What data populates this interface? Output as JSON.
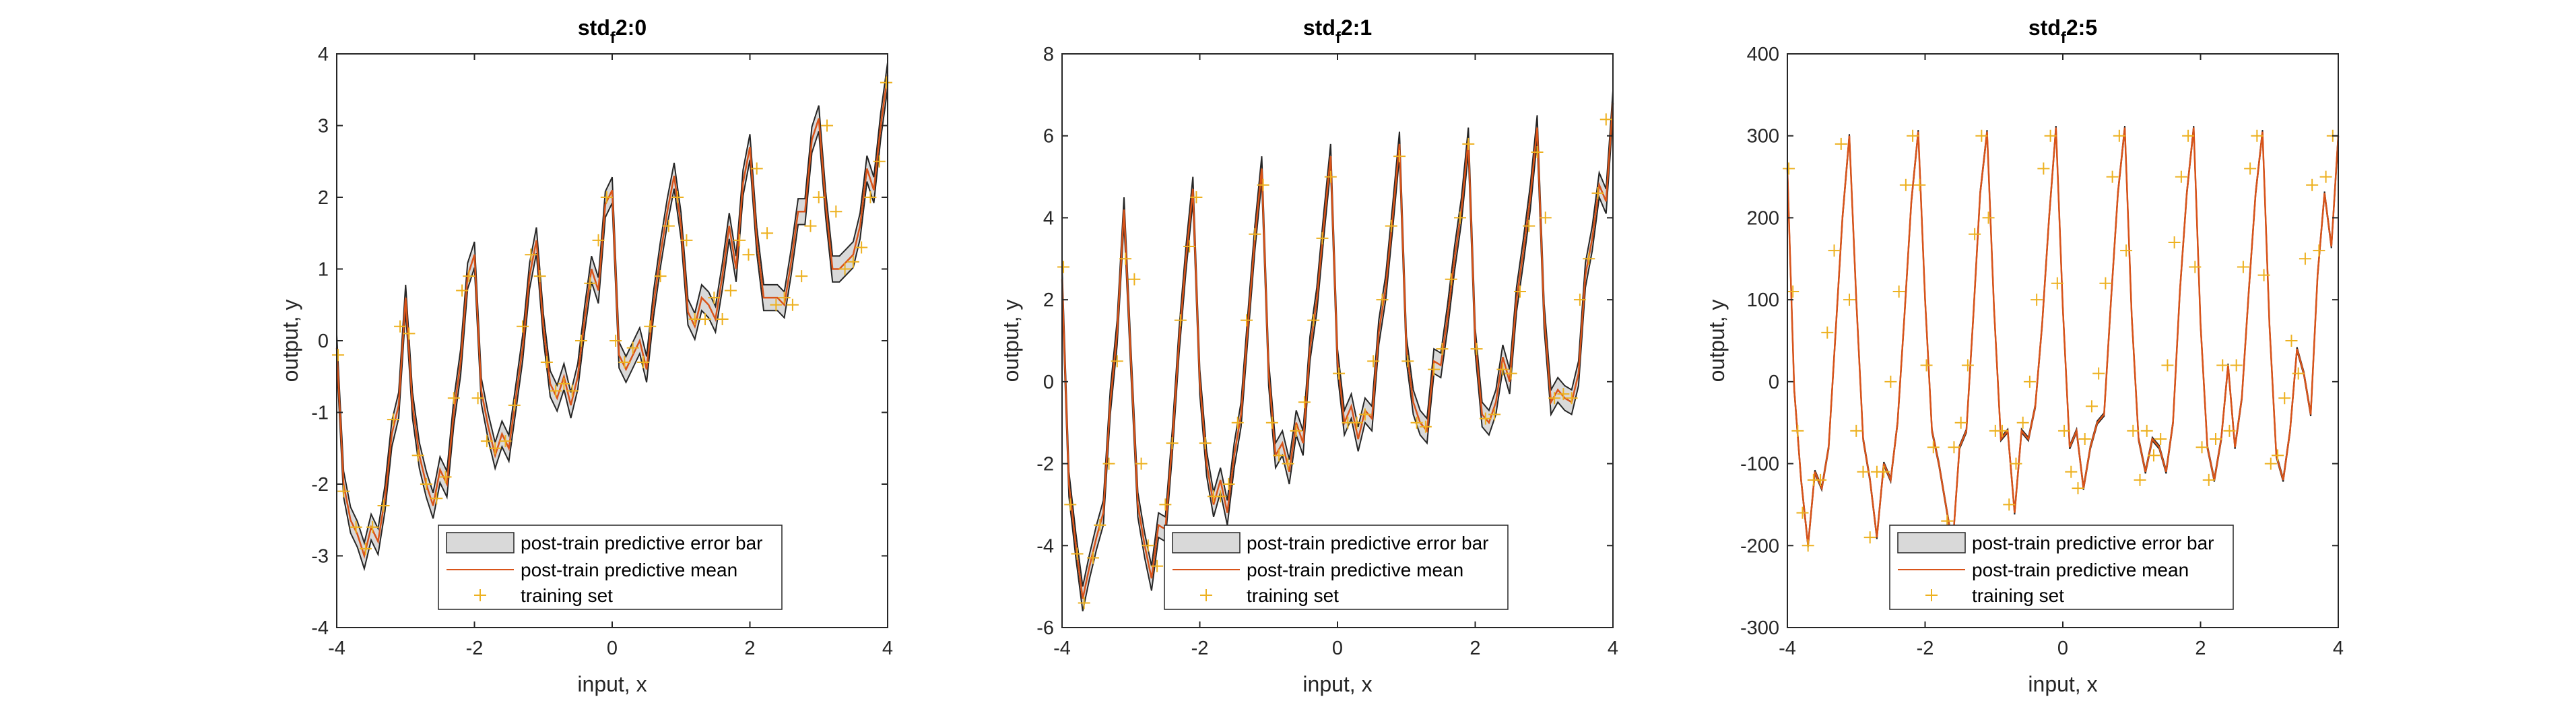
{
  "chart_data": [
    {
      "type": "line",
      "title": "std_f2:0",
      "title_main": "std",
      "title_sub": "f",
      "title_rest": "2:0",
      "xlabel": "input, x",
      "ylabel": "output, y",
      "xlim": [
        -4,
        4
      ],
      "ylim": [
        -4,
        4
      ],
      "xticks": [
        -4,
        -2,
        0,
        2,
        4
      ],
      "yticks": [
        -4,
        -3,
        -2,
        -1,
        0,
        1,
        2,
        3,
        4
      ],
      "xtick_labels": [
        "-4",
        "-2",
        "0",
        "2",
        "4"
      ],
      "ytick_labels": [
        "-4",
        "-3",
        "-2",
        "-1",
        "0",
        "1",
        "2",
        "3",
        "4"
      ],
      "mean_curve": {
        "x": [
          -4.0,
          -3.9,
          -3.8,
          -3.7,
          -3.6,
          -3.5,
          -3.4,
          -3.3,
          -3.2,
          -3.1,
          -3.0,
          -2.9,
          -2.8,
          -2.7,
          -2.6,
          -2.5,
          -2.4,
          -2.3,
          -2.2,
          -2.1,
          -2.0,
          -1.9,
          -1.8,
          -1.7,
          -1.6,
          -1.5,
          -1.4,
          -1.3,
          -1.2,
          -1.1,
          -1.0,
          -0.9,
          -0.8,
          -0.7,
          -0.6,
          -0.5,
          -0.4,
          -0.3,
          -0.2,
          -0.1,
          0.0,
          0.1,
          0.2,
          0.3,
          0.4,
          0.5,
          0.6,
          0.7,
          0.8,
          0.9,
          1.0,
          1.1,
          1.2,
          1.3,
          1.4,
          1.5,
          1.6,
          1.7,
          1.8,
          1.9,
          2.0,
          2.1,
          2.2,
          2.3,
          2.4,
          2.5,
          2.6,
          2.7,
          2.8,
          2.9,
          3.0,
          3.1,
          3.2,
          3.3,
          3.4,
          3.5,
          3.6,
          3.7,
          3.8,
          3.9,
          4.0
        ],
        "y": [
          -0.1,
          -2.0,
          -2.5,
          -2.7,
          -3.0,
          -2.6,
          -2.8,
          -2.2,
          -1.3,
          -0.9,
          0.6,
          -0.9,
          -1.6,
          -2.0,
          -2.3,
          -1.8,
          -2.0,
          -1.0,
          -0.3,
          0.9,
          1.2,
          -0.7,
          -1.2,
          -1.6,
          -1.3,
          -1.5,
          -0.8,
          -0.1,
          0.9,
          1.4,
          0.2,
          -0.6,
          -0.8,
          -0.5,
          -0.9,
          -0.5,
          0.3,
          1.0,
          0.7,
          1.9,
          2.1,
          -0.2,
          -0.4,
          -0.2,
          0.0,
          -0.4,
          0.5,
          1.2,
          1.8,
          2.3,
          1.6,
          0.4,
          0.2,
          0.6,
          0.5,
          0.3,
          0.9,
          1.6,
          1.0,
          2.2,
          2.7,
          1.4,
          0.6,
          0.6,
          0.6,
          0.5,
          1.1,
          1.8,
          1.8,
          2.8,
          3.1,
          1.9,
          1.0,
          1.0,
          1.1,
          1.2,
          1.6,
          2.4,
          2.1,
          3.0,
          3.7
        ]
      },
      "error_band_halfwidth": 0.18,
      "training_set": {
        "x": [
          -3.98,
          -3.9,
          -3.72,
          -3.58,
          -3.48,
          -3.32,
          -3.18,
          -3.08,
          -2.95,
          -2.82,
          -2.7,
          -2.55,
          -2.42,
          -2.3,
          -2.18,
          -2.08,
          -1.95,
          -1.82,
          -1.7,
          -1.55,
          -1.42,
          -1.3,
          -1.18,
          -1.05,
          -0.95,
          -0.82,
          -0.7,
          -0.58,
          -0.45,
          -0.32,
          -0.2,
          -0.08,
          0.05,
          0.18,
          0.3,
          0.45,
          0.55,
          0.7,
          0.82,
          0.95,
          1.08,
          1.2,
          1.35,
          1.48,
          1.6,
          1.72,
          1.85,
          1.98,
          2.1,
          2.25,
          2.38,
          2.5,
          2.62,
          2.75,
          2.88,
          3.0,
          3.12,
          3.25,
          3.38,
          3.5,
          3.62,
          3.75,
          3.88,
          3.98
        ],
        "y": [
          -0.2,
          -2.1,
          -2.6,
          -2.9,
          -2.6,
          -2.3,
          -1.1,
          0.2,
          0.1,
          -1.6,
          -2.0,
          -2.2,
          -1.9,
          -0.8,
          0.7,
          0.9,
          -0.8,
          -1.4,
          -1.5,
          -1.4,
          -0.9,
          0.2,
          1.2,
          0.9,
          -0.3,
          -0.7,
          -0.6,
          -0.7,
          0.0,
          0.8,
          1.4,
          2.0,
          0.0,
          -0.3,
          -0.1,
          -0.3,
          0.2,
          0.9,
          1.6,
          2.0,
          1.4,
          0.3,
          0.3,
          0.6,
          0.3,
          0.7,
          1.4,
          1.2,
          2.4,
          1.5,
          0.5,
          0.6,
          0.5,
          0.9,
          1.6,
          2.0,
          3.0,
          1.8,
          1.0,
          1.1,
          1.3,
          2.0,
          2.5,
          3.6
        ]
      },
      "legend": {
        "position": "bottom-center",
        "entries": [
          "post-train predictive error bar",
          "post-train predictive mean",
          "training set"
        ]
      },
      "grid": false
    },
    {
      "type": "line",
      "title": "std_f2:1",
      "title_main": "std",
      "title_sub": "f",
      "title_rest": "2:1",
      "xlabel": "input, x",
      "ylabel": "output, y",
      "xlim": [
        -4,
        4
      ],
      "ylim": [
        -6,
        8
      ],
      "xticks": [
        -4,
        -2,
        0,
        2,
        4
      ],
      "yticks": [
        -6,
        -4,
        -2,
        0,
        2,
        4,
        6,
        8
      ],
      "xtick_labels": [
        "-4",
        "-2",
        "0",
        "2",
        "4"
      ],
      "ytick_labels": [
        "-6",
        "-4",
        "-2",
        "0",
        "2",
        "4",
        "6",
        "8"
      ],
      "mean_curve": {
        "x": [
          -4.0,
          -3.9,
          -3.8,
          -3.7,
          -3.6,
          -3.5,
          -3.4,
          -3.3,
          -3.2,
          -3.1,
          -3.0,
          -2.9,
          -2.8,
          -2.7,
          -2.6,
          -2.5,
          -2.4,
          -2.3,
          -2.2,
          -2.1,
          -2.0,
          -1.9,
          -1.8,
          -1.7,
          -1.6,
          -1.5,
          -1.4,
          -1.3,
          -1.2,
          -1.1,
          -1.0,
          -0.9,
          -0.8,
          -0.7,
          -0.6,
          -0.5,
          -0.4,
          -0.3,
          -0.2,
          -0.1,
          0.0,
          0.1,
          0.2,
          0.3,
          0.4,
          0.5,
          0.6,
          0.7,
          0.8,
          0.9,
          1.0,
          1.1,
          1.2,
          1.3,
          1.4,
          1.5,
          1.6,
          1.7,
          1.8,
          1.9,
          2.0,
          2.1,
          2.2,
          2.3,
          2.4,
          2.5,
          2.6,
          2.7,
          2.8,
          2.9,
          3.0,
          3.1,
          3.2,
          3.3,
          3.4,
          3.5,
          3.6,
          3.7,
          3.8,
          3.9,
          4.0
        ],
        "y": [
          2.5,
          -2.5,
          -4.0,
          -5.3,
          -4.5,
          -3.8,
          -3.2,
          -0.5,
          1.2,
          4.2,
          0.5,
          -3.0,
          -4.0,
          -4.8,
          -3.5,
          -3.6,
          -1.5,
          1.0,
          3.0,
          4.7,
          0.0,
          -2.0,
          -3.0,
          -2.4,
          -3.2,
          -1.8,
          -0.8,
          1.4,
          3.5,
          5.2,
          0.2,
          -1.8,
          -1.5,
          -2.2,
          -1.0,
          -1.5,
          0.8,
          2.0,
          3.8,
          5.5,
          0.5,
          -1.0,
          -0.6,
          -1.4,
          -0.7,
          -0.9,
          1.2,
          2.3,
          4.0,
          5.8,
          0.8,
          -0.5,
          -1.0,
          -1.2,
          0.5,
          0.4,
          1.6,
          3.0,
          4.2,
          5.9,
          1.0,
          -0.8,
          -1.0,
          -0.5,
          0.6,
          0.0,
          2.0,
          3.2,
          4.5,
          6.2,
          1.6,
          -0.5,
          -0.2,
          -0.4,
          -0.5,
          0.2,
          2.6,
          3.5,
          4.8,
          4.4,
          6.8
        ]
      },
      "error_band_halfwidth": 0.3,
      "training_set": {
        "x": [
          -3.98,
          -3.88,
          -3.78,
          -3.68,
          -3.55,
          -3.45,
          -3.32,
          -3.2,
          -3.08,
          -2.95,
          -2.85,
          -2.75,
          -2.62,
          -2.5,
          -2.4,
          -2.28,
          -2.15,
          -2.05,
          -1.92,
          -1.8,
          -1.7,
          -1.58,
          -1.45,
          -1.32,
          -1.2,
          -1.08,
          -0.95,
          -0.85,
          -0.72,
          -0.6,
          -0.48,
          -0.35,
          -0.22,
          -0.1,
          0.02,
          0.15,
          0.28,
          0.4,
          0.52,
          0.65,
          0.78,
          0.9,
          1.02,
          1.15,
          1.28,
          1.4,
          1.52,
          1.65,
          1.78,
          1.9,
          2.02,
          2.15,
          2.28,
          2.4,
          2.52,
          2.65,
          2.78,
          2.9,
          3.02,
          3.15,
          3.28,
          3.4,
          3.52,
          3.65,
          3.78,
          3.9
        ],
        "y": [
          2.8,
          -3.0,
          -4.2,
          -5.4,
          -4.3,
          -3.5,
          -2.0,
          0.5,
          3.0,
          2.5,
          -2.0,
          -4.0,
          -4.5,
          -3.0,
          -1.5,
          1.5,
          3.3,
          4.5,
          -1.5,
          -2.8,
          -2.8,
          -2.5,
          -1.0,
          1.5,
          3.6,
          4.8,
          -1.0,
          -1.8,
          -2.0,
          -1.2,
          -0.5,
          1.5,
          3.5,
          5.0,
          0.2,
          -1.0,
          -1.0,
          -0.8,
          0.5,
          2.0,
          3.8,
          5.5,
          0.5,
          -1.0,
          -1.1,
          0.3,
          0.8,
          2.5,
          4.0,
          5.8,
          0.8,
          -0.9,
          -0.8,
          0.3,
          0.2,
          2.2,
          3.8,
          5.6,
          4.0,
          -0.4,
          -0.3,
          -0.4,
          2.0,
          3.0,
          4.6,
          6.4
        ]
      },
      "legend": {
        "position": "bottom-center",
        "entries": [
          "post-train predictive error bar",
          "post-train predictive mean",
          "training set"
        ]
      },
      "grid": false
    },
    {
      "type": "line",
      "title": "std_f2:5",
      "title_main": "std",
      "title_sub": "f",
      "title_rest": "2:5",
      "xlabel": "input, x",
      "ylabel": "output, y",
      "xlim": [
        -4,
        4
      ],
      "ylim": [
        -300,
        400
      ],
      "xticks": [
        -4,
        -2,
        0,
        2,
        4
      ],
      "yticks": [
        -300,
        -200,
        -100,
        0,
        100,
        200,
        300,
        400
      ],
      "xtick_labels": [
        "-4",
        "-2",
        "0",
        "2",
        "4"
      ],
      "ytick_labels": [
        "-300",
        "-200",
        "-100",
        "0",
        "100",
        "200",
        "300",
        "400"
      ],
      "mean_curve": {
        "x": [
          -4.0,
          -3.9,
          -3.8,
          -3.7,
          -3.6,
          -3.5,
          -3.4,
          -3.3,
          -3.2,
          -3.1,
          -3.0,
          -2.9,
          -2.8,
          -2.7,
          -2.6,
          -2.5,
          -2.4,
          -2.3,
          -2.2,
          -2.1,
          -2.0,
          -1.9,
          -1.8,
          -1.7,
          -1.6,
          -1.5,
          -1.4,
          -1.3,
          -1.2,
          -1.1,
          -1.0,
          -0.9,
          -0.8,
          -0.7,
          -0.6,
          -0.5,
          -0.4,
          -0.3,
          -0.2,
          -0.1,
          0.0,
          0.1,
          0.2,
          0.3,
          0.4,
          0.5,
          0.6,
          0.7,
          0.8,
          0.9,
          1.0,
          1.1,
          1.2,
          1.3,
          1.4,
          1.5,
          1.6,
          1.7,
          1.8,
          1.9,
          2.0,
          2.1,
          2.2,
          2.3,
          2.4,
          2.5,
          2.6,
          2.7,
          2.8,
          2.9,
          3.0,
          3.1,
          3.2,
          3.3,
          3.4,
          3.5,
          3.6,
          3.7,
          3.8,
          3.9,
          4.0
        ],
        "y": [
          260,
          -10,
          -120,
          -200,
          -110,
          -130,
          -80,
          60,
          200,
          300,
          100,
          -70,
          -120,
          -190,
          -100,
          -120,
          -50,
          80,
          220,
          305,
          100,
          -60,
          -100,
          -150,
          -200,
          -80,
          -60,
          80,
          230,
          305,
          90,
          -70,
          -60,
          -160,
          -60,
          -70,
          -30,
          70,
          200,
          310,
          90,
          -80,
          -60,
          -130,
          -80,
          -50,
          -40,
          100,
          230,
          310,
          80,
          -70,
          -110,
          -70,
          -80,
          -110,
          -50,
          110,
          230,
          310,
          70,
          -80,
          -120,
          -70,
          20,
          -80,
          -20,
          110,
          230,
          305,
          70,
          -90,
          -120,
          -60,
          40,
          10,
          -40,
          130,
          230,
          165,
          300
        ]
      },
      "error_band_halfwidth": 2,
      "training_set": {
        "x": [
          -3.98,
          -3.92,
          -3.85,
          -3.78,
          -3.7,
          -3.62,
          -3.52,
          -3.42,
          -3.32,
          -3.22,
          -3.1,
          -3.0,
          -2.9,
          -2.8,
          -2.7,
          -2.6,
          -2.5,
          -2.38,
          -2.28,
          -2.18,
          -2.08,
          -1.98,
          -1.88,
          -1.78,
          -1.68,
          -1.58,
          -1.48,
          -1.38,
          -1.28,
          -1.18,
          -1.08,
          -0.98,
          -0.88,
          -0.78,
          -0.68,
          -0.58,
          -0.48,
          -0.38,
          -0.28,
          -0.18,
          -0.08,
          0.02,
          0.12,
          0.22,
          0.32,
          0.42,
          0.52,
          0.62,
          0.72,
          0.82,
          0.92,
          1.02,
          1.12,
          1.22,
          1.32,
          1.42,
          1.52,
          1.62,
          1.72,
          1.82,
          1.92,
          2.02,
          2.12,
          2.22,
          2.32,
          2.42,
          2.52,
          2.62,
          2.72,
          2.82,
          2.92,
          3.02,
          3.12,
          3.22,
          3.32,
          3.42,
          3.52,
          3.62,
          3.72,
          3.82,
          3.92
        ],
        "y": [
          260,
          110,
          -60,
          -160,
          -200,
          -120,
          -120,
          60,
          160,
          290,
          100,
          -60,
          -110,
          -190,
          -110,
          -110,
          0,
          110,
          240,
          300,
          240,
          20,
          -80,
          -190,
          -170,
          -80,
          -50,
          20,
          180,
          300,
          200,
          -60,
          -60,
          -150,
          -100,
          -50,
          0,
          100,
          260,
          300,
          120,
          -60,
          -110,
          -130,
          -70,
          -30,
          10,
          120,
          250,
          300,
          160,
          -60,
          -120,
          -60,
          -90,
          -70,
          20,
          170,
          250,
          300,
          140,
          -80,
          -120,
          -70,
          20,
          -60,
          20,
          140,
          260,
          300,
          130,
          -100,
          -90,
          -20,
          50,
          10,
          150,
          240,
          160,
          250,
          300
        ]
      },
      "legend": {
        "position": "bottom-center",
        "entries": [
          "post-train predictive error bar",
          "post-train predictive mean",
          "training set"
        ]
      },
      "grid": false
    }
  ],
  "colors": {
    "mean_line": "#d95319",
    "error_band_fill": "#d9d9d9",
    "error_band_edge": "#262626",
    "training_marker": "#edb120",
    "axes": "#262626"
  }
}
